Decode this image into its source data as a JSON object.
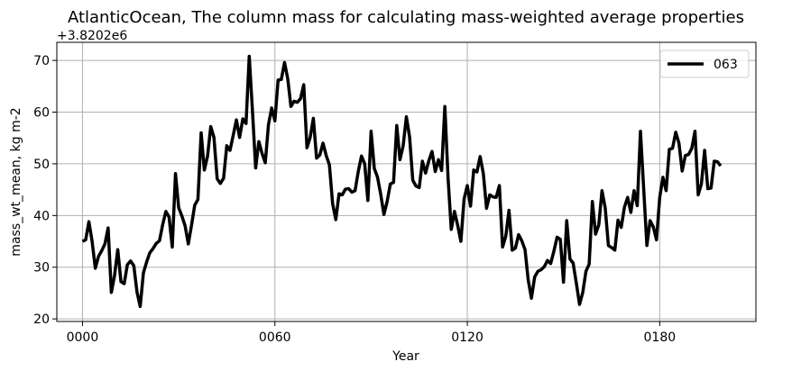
{
  "chart_data": {
    "type": "line",
    "title": "AtlanticOcean, The column mass for calculating mass-weighted average properties",
    "xlabel": "Year",
    "ylabel": "mass_wt_mean, kg m-2",
    "y_offset_label": "+3.8202e6",
    "xlim": [
      -8,
      210
    ],
    "ylim": [
      19.5,
      73.5
    ],
    "xticks": [
      0,
      60,
      120,
      180
    ],
    "xtick_labels": [
      "0000",
      "0060",
      "0120",
      "0180"
    ],
    "yticks": [
      20,
      30,
      40,
      50,
      60,
      70
    ],
    "ytick_labels": [
      "20",
      "30",
      "40",
      "50",
      "60",
      "70"
    ],
    "grid": true,
    "legend_position": "top-right",
    "series": [
      {
        "name": "063",
        "color": "#000000",
        "x": [
          0,
          1,
          2,
          3,
          4,
          5,
          6,
          7,
          8,
          9,
          10,
          11,
          12,
          13,
          14,
          15,
          16,
          17,
          18,
          19,
          20,
          21,
          22,
          23,
          24,
          25,
          26,
          27,
          28,
          29,
          30,
          31,
          32,
          33,
          34,
          35,
          36,
          37,
          38,
          39,
          40,
          41,
          42,
          43,
          44,
          45,
          46,
          47,
          48,
          49,
          50,
          51,
          52,
          53,
          54,
          55,
          56,
          57,
          58,
          59,
          60,
          61,
          62,
          63,
          64,
          65,
          66,
          67,
          68,
          69,
          70,
          71,
          72,
          73,
          74,
          75,
          76,
          77,
          78,
          79,
          80,
          81,
          82,
          83,
          84,
          85,
          86,
          87,
          88,
          89,
          90,
          91,
          92,
          93,
          94,
          95,
          96,
          97,
          98,
          99,
          100,
          101,
          102,
          103,
          104,
          105,
          106,
          107,
          108,
          109,
          110,
          111,
          112,
          113,
          114,
          115,
          116,
          117,
          118,
          119,
          120,
          121,
          122,
          123,
          124,
          125,
          126,
          127,
          128,
          129,
          130,
          131,
          132,
          133,
          134,
          135,
          136,
          137,
          138,
          139,
          140,
          141,
          142,
          143,
          144,
          145,
          146,
          147,
          148,
          149,
          150,
          151,
          152,
          153,
          154,
          155,
          156,
          157,
          158,
          159,
          160,
          161,
          162,
          163,
          164,
          165,
          166,
          167,
          168,
          169,
          170,
          171,
          172,
          173,
          174,
          175,
          176,
          177,
          178,
          179,
          180,
          181,
          182,
          183,
          184,
          185,
          186,
          187,
          188,
          189,
          190,
          191,
          192,
          193,
          194,
          195,
          196,
          197,
          198,
          199
        ],
        "y": [
          35.0,
          35.3,
          38.8,
          35.0,
          29.8,
          32.1,
          33.2,
          34.5,
          37.6,
          25.1,
          28.4,
          33.4,
          27.2,
          26.8,
          30.5,
          31.2,
          30.3,
          25.2,
          22.4,
          28.9,
          31.0,
          32.8,
          33.6,
          34.6,
          35.1,
          38.2,
          40.8,
          39.7,
          33.9,
          48.1,
          41.5,
          39.9,
          38.0,
          34.5,
          38.1,
          42.0,
          43.1,
          56.0,
          48.8,
          51.5,
          57.2,
          55.1,
          47.1,
          46.2,
          47.2,
          53.5,
          52.6,
          55.5,
          58.5,
          55.1,
          58.7,
          57.8,
          70.8,
          60.3,
          49.2,
          54.3,
          52.0,
          50.2,
          57.6,
          60.8,
          58.3,
          66.2,
          66.3,
          69.6,
          66.5,
          61.1,
          62.1,
          61.9,
          62.6,
          65.3,
          53.1,
          55.1,
          58.8,
          51.1,
          51.7,
          54.0,
          51.6,
          49.8,
          42.3,
          39.2,
          44.2,
          44.0,
          45.1,
          45.2,
          44.5,
          44.8,
          48.5,
          51.5,
          50.0,
          42.9,
          56.3,
          49.1,
          47.4,
          44.1,
          40.2,
          42.7,
          46.1,
          46.4,
          57.4,
          50.8,
          53.5,
          59.1,
          55.2,
          46.8,
          45.7,
          45.4,
          50.5,
          48.2,
          50.6,
          52.4,
          48.5,
          50.8,
          48.7,
          61.1,
          47.2,
          37.3,
          40.8,
          38.1,
          35.0,
          43.2,
          45.8,
          41.8,
          48.8,
          48.4,
          51.4,
          48.1,
          41.4,
          44.0,
          43.6,
          43.5,
          45.8,
          33.9,
          36.0,
          41.0,
          33.3,
          33.7,
          36.3,
          35.1,
          33.4,
          27.5,
          24.0,
          28.1,
          29.2,
          29.5,
          30.1,
          31.3,
          30.7,
          33.1,
          35.8,
          35.4,
          27.1,
          39.0,
          31.6,
          30.8,
          26.9,
          22.8,
          25.1,
          29.2,
          30.6,
          42.7,
          36.4,
          38.2,
          44.8,
          41.5,
          34.2,
          33.8,
          33.3,
          39.1,
          37.7,
          41.6,
          43.5,
          40.6,
          44.8,
          41.9,
          56.3,
          45.2,
          34.2,
          39.0,
          37.8,
          35.3,
          43.5,
          47.4,
          44.8,
          52.8,
          53.0,
          56.1,
          54.0,
          48.6,
          51.6,
          51.8,
          53.0,
          56.3,
          44.0,
          46.1,
          52.6,
          45.2,
          45.3,
          50.5,
          50.4,
          49.6
        ]
      }
    ]
  }
}
